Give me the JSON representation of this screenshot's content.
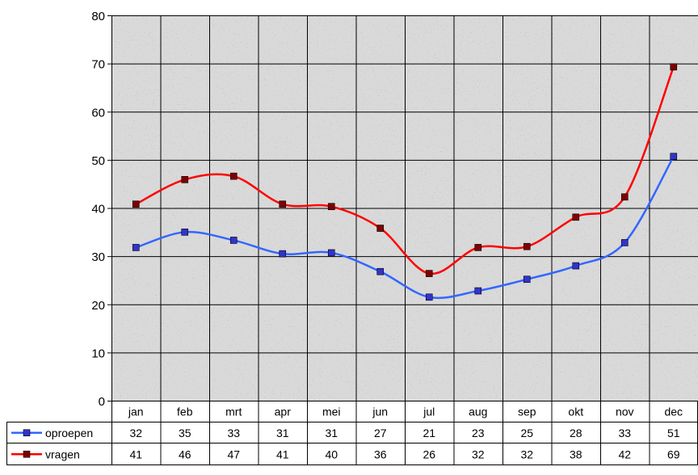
{
  "chart_data": {
    "type": "line",
    "categories": [
      "jan",
      "feb",
      "mrt",
      "apr",
      "mei",
      "jun",
      "jul",
      "aug",
      "sep",
      "okt",
      "nov",
      "dec"
    ],
    "series": [
      {
        "name": "oproepen",
        "color": "#3366ff",
        "values": [
          32,
          35,
          33,
          31,
          31,
          27,
          21,
          23,
          25,
          28,
          33,
          51
        ],
        "plotted": [
          31.8,
          35.0,
          33.3,
          30.5,
          30.7,
          26.8,
          21.5,
          22.8,
          25.2,
          28.0,
          32.8,
          50.7
        ]
      },
      {
        "name": "vragen",
        "color": "#ff0000",
        "values": [
          41,
          46,
          47,
          41,
          40,
          36,
          26,
          32,
          32,
          38,
          42,
          69
        ],
        "plotted": [
          40.8,
          45.9,
          46.6,
          40.8,
          40.3,
          35.8,
          26.4,
          31.8,
          32.0,
          38.1,
          42.3,
          69.3
        ]
      }
    ],
    "yticks": [
      0,
      10,
      20,
      30,
      40,
      50,
      60,
      70,
      80
    ],
    "ylim": [
      0,
      80
    ],
    "smooth": true,
    "grid": true,
    "legend": "data-table",
    "marker": "square",
    "marker_color": "#000080",
    "marker_color_by_series": {
      "oproepen": "#3333cc",
      "vragen": "#800000"
    },
    "background": "gray-texture"
  }
}
